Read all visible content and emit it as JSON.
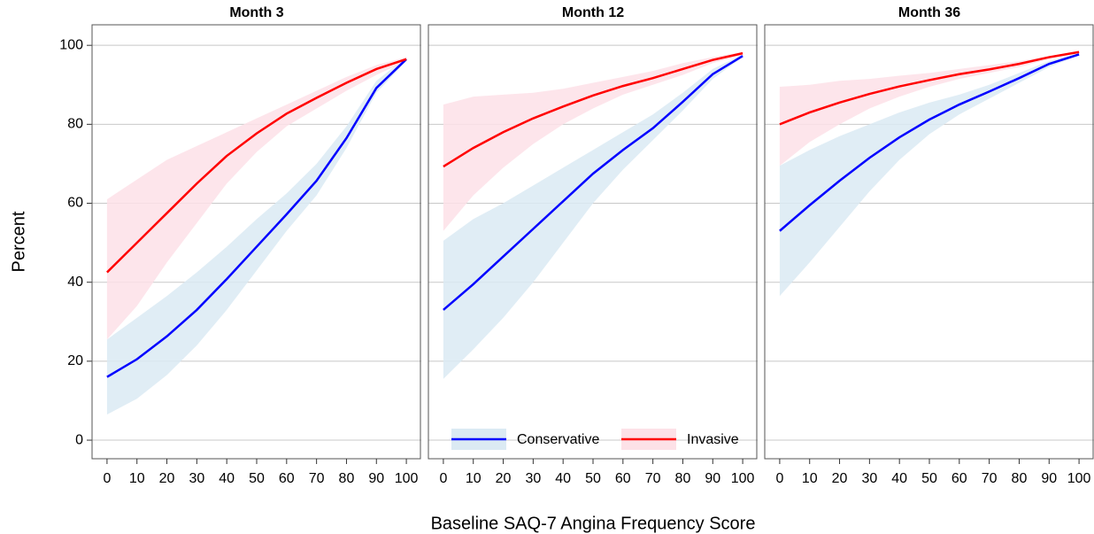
{
  "ylabel": "Percent",
  "xlabel": "Baseline SAQ-7 Angina Frequency Score",
  "chart_data": [
    {
      "type": "line",
      "title": "Month 3",
      "grid": true,
      "x": [
        0,
        10,
        20,
        30,
        40,
        50,
        60,
        70,
        80,
        90,
        100
      ],
      "xlim": [
        -5,
        105
      ],
      "xticks": [
        0,
        10,
        20,
        30,
        40,
        50,
        60,
        70,
        80,
        90,
        100
      ],
      "ylim": [
        -4.7,
        105.2
      ],
      "yticks": [
        0,
        20,
        40,
        60,
        80,
        100
      ],
      "series": [
        {
          "name": "Conservative",
          "color": "#0000ff",
          "band_color": "#dbeaf3",
          "values": [
            16,
            20.5,
            26.3,
            33,
            40.8,
            49,
            57.2,
            65.7,
            76.5,
            89.2,
            96.5
          ],
          "lower": [
            6.5,
            10.5,
            16.5,
            24,
            33,
            43,
            53,
            62,
            74,
            88,
            96
          ],
          "upper": [
            25.5,
            31,
            36.5,
            42.5,
            49,
            56,
            62.5,
            70,
            79.5,
            91,
            97
          ]
        },
        {
          "name": "Invasive",
          "color": "#ff0000",
          "band_color": "#fde1e7",
          "values": [
            42.5,
            50,
            57.5,
            65,
            72,
            77.7,
            82.7,
            86.7,
            90.5,
            94,
            96.5
          ],
          "lower": [
            25.5,
            34,
            45,
            55,
            65,
            73,
            79.5,
            84,
            88.5,
            92.5,
            96
          ],
          "upper": [
            61,
            66,
            71,
            74.5,
            78,
            81.5,
            85,
            88.5,
            92,
            95,
            97
          ]
        }
      ]
    },
    {
      "type": "line",
      "title": "Month 12",
      "grid": true,
      "legend": "bottom",
      "x": [
        0,
        10,
        20,
        30,
        40,
        50,
        60,
        70,
        80,
        90,
        100
      ],
      "xlim": [
        -5,
        105
      ],
      "xticks": [
        0,
        10,
        20,
        30,
        40,
        50,
        60,
        70,
        80,
        90,
        100
      ],
      "ylim": [
        -4.7,
        105.2
      ],
      "yticks": [
        0,
        20,
        40,
        60,
        80,
        100
      ],
      "series": [
        {
          "name": "Conservative",
          "color": "#0000ff",
          "band_color": "#dbeaf3",
          "values": [
            33,
            39.5,
            46.5,
            53.5,
            60.5,
            67.5,
            73.5,
            79,
            85.7,
            92.7,
            97.3
          ],
          "lower": [
            15.5,
            23,
            31,
            40,
            50,
            60,
            68.5,
            76,
            83.5,
            91.5,
            97
          ],
          "upper": [
            50.5,
            56,
            60,
            64.5,
            69,
            73.5,
            78,
            82.5,
            88,
            94,
            97.7
          ]
        },
        {
          "name": "Invasive",
          "color": "#ff0000",
          "band_color": "#fde1e7",
          "values": [
            69.3,
            74,
            78,
            81.5,
            84.5,
            87.3,
            89.7,
            91.7,
            94,
            96.3,
            98
          ],
          "lower": [
            53,
            62,
            69,
            75,
            80,
            84,
            87.5,
            90,
            92.5,
            95.5,
            97.5
          ],
          "upper": [
            85,
            87,
            87.5,
            88,
            89,
            90.5,
            92,
            93.5,
            95.5,
            97,
            98.3
          ]
        }
      ]
    },
    {
      "type": "line",
      "title": "Month 36",
      "grid": true,
      "x": [
        0,
        10,
        20,
        30,
        40,
        50,
        60,
        70,
        80,
        90,
        100
      ],
      "xlim": [
        -5,
        105
      ],
      "xticks": [
        0,
        10,
        20,
        30,
        40,
        50,
        60,
        70,
        80,
        90,
        100
      ],
      "ylim": [
        -4.7,
        105.2
      ],
      "yticks": [
        0,
        20,
        40,
        60,
        80,
        100
      ],
      "series": [
        {
          "name": "Conservative",
          "color": "#0000ff",
          "band_color": "#dbeaf3",
          "values": [
            53,
            59.5,
            65.7,
            71.5,
            76.7,
            81.2,
            85,
            88.3,
            91.7,
            95.3,
            97.7
          ],
          "lower": [
            36.5,
            45,
            54,
            63,
            71,
            77.5,
            82.5,
            86.5,
            90.5,
            94.5,
            97.5
          ],
          "upper": [
            69.5,
            73.5,
            77,
            80,
            83,
            85.5,
            87.5,
            90,
            93,
            96,
            98
          ]
        },
        {
          "name": "Invasive",
          "color": "#ff0000",
          "band_color": "#fde1e7",
          "values": [
            80,
            83,
            85.5,
            87.7,
            89.6,
            91.2,
            92.7,
            93.9,
            95.3,
            97,
            98.3
          ],
          "lower": [
            69.5,
            75.5,
            80,
            84,
            87,
            89.5,
            91.5,
            93,
            94.5,
            96.5,
            98
          ],
          "upper": [
            89.5,
            90,
            91,
            91.5,
            92.3,
            93,
            94,
            95,
            96,
            97.3,
            98.5
          ]
        }
      ]
    }
  ]
}
